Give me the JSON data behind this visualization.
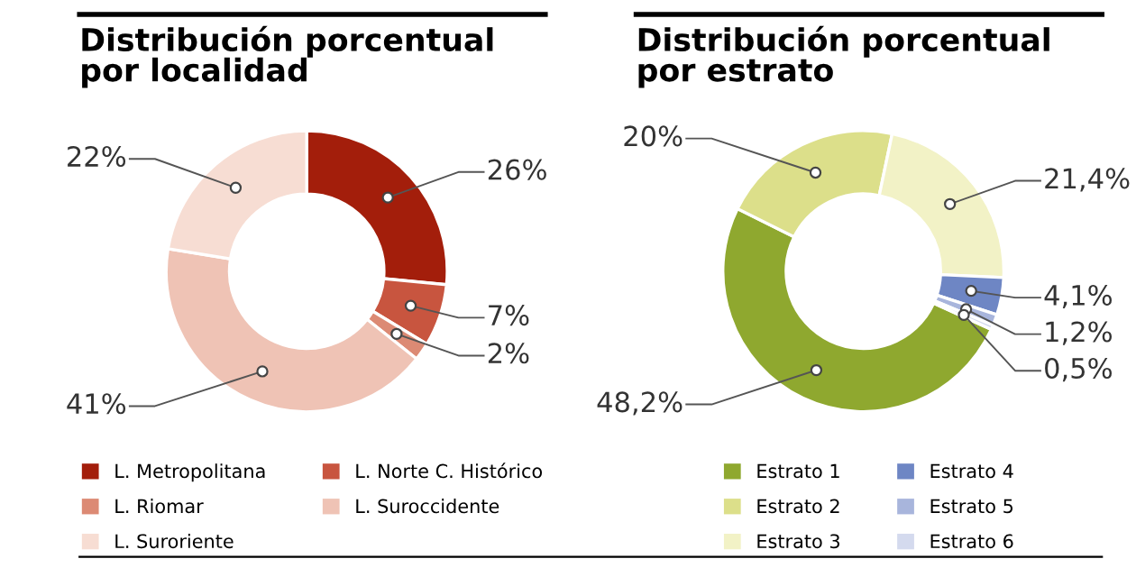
{
  "chart_data": [
    {
      "type": "donut",
      "title": "Distribución porcentual\npor localidad",
      "categories": [
        "L. Metropolitana",
        "L. Norte C. Histórico",
        "L. Riomar",
        "L. Suroccidente",
        "L. Suroriente"
      ],
      "values": [
        26,
        7,
        2,
        41,
        22
      ],
      "value_labels": [
        "26%",
        "7%",
        "2%",
        "41%",
        "22%"
      ],
      "colors": [
        "#a31e0b",
        "#c8553f",
        "#dc8a74",
        "#efc3b5",
        "#f7ddd3"
      ],
      "legend": "bottom"
    },
    {
      "type": "donut",
      "title": "Distribución porcentual\npor estrato",
      "categories": [
        "Estrato 1",
        "Estrato 2",
        "Estrato 3",
        "Estrato 4",
        "Estrato 5",
        "Estrato 6"
      ],
      "values": [
        48.2,
        20,
        21.4,
        4.1,
        1.2,
        0.5
      ],
      "value_labels": [
        "48,2%",
        "20%",
        "21,4%",
        "4,1%",
        "1,2%",
        "0,5%"
      ],
      "colors": [
        "#8fa82f",
        "#dcdf8a",
        "#f2f2c6",
        "#6e86c4",
        "#a8b5dc",
        "#d4daee"
      ],
      "legend": "bottom"
    }
  ]
}
